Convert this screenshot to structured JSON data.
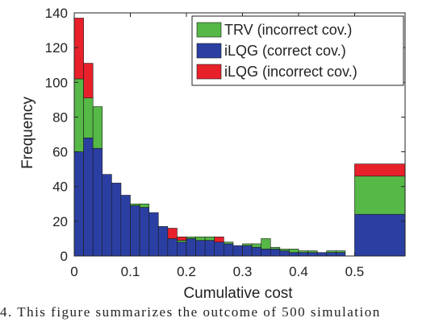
{
  "chart_data": {
    "type": "bar",
    "stacked": true,
    "xlabel": "Cumulative cost",
    "ylabel": "Frequency",
    "xlim": [
      0,
      0.59
    ],
    "ylim": [
      0,
      140
    ],
    "xticks": [
      "0",
      "0.1",
      "0.2",
      "0.3",
      "0.4",
      "0.5"
    ],
    "xtick_values": [
      0,
      0.1,
      0.2,
      0.3,
      0.4,
      0.5
    ],
    "yticks": [
      0,
      20,
      40,
      60,
      80,
      100,
      120,
      140
    ],
    "grid": false,
    "legend_position": "top-right",
    "bin_width": 0.0167,
    "bins": [
      0,
      0.0167,
      0.0333,
      0.05,
      0.0667,
      0.0833,
      0.1,
      0.1167,
      0.1333,
      0.15,
      0.1667,
      0.1833,
      0.2,
      0.2167,
      0.2333,
      0.25,
      0.2667,
      0.2833,
      0.3,
      0.3167,
      0.3333,
      0.35,
      0.3667,
      0.3833,
      0.4,
      0.4167,
      0.4333,
      0.45,
      0.4667
    ],
    "overflow_bin": [
      0.5,
      0.59
    ],
    "series": [
      {
        "name": "iLQG (correct cov.)",
        "color": "#2b3fa3",
        "values": [
          60,
          68,
          62,
          47,
          42,
          35,
          29,
          28,
          25,
          17,
          10,
          8,
          10,
          9,
          9,
          8,
          7,
          6,
          6,
          5,
          4,
          4,
          3,
          2,
          2,
          2,
          2,
          2,
          2
        ],
        "overflow": 24
      },
      {
        "name": "TRV (incorrect cov.)",
        "color": "#56b847",
        "values": [
          42,
          23,
          24,
          0,
          0,
          0,
          1,
          2,
          0,
          0,
          0,
          1,
          1,
          2,
          2,
          0,
          1,
          0,
          1,
          2,
          6,
          1,
          1,
          2,
          1,
          1,
          0,
          1,
          1
        ],
        "overflow": 22
      },
      {
        "name": "iLQG (incorrect cov.)",
        "color": "#e8202a",
        "values": [
          35,
          20,
          0,
          0,
          0,
          0,
          0,
          0,
          0,
          0,
          6,
          2,
          0,
          0,
          0,
          3,
          0,
          0,
          0,
          0,
          0,
          0,
          0,
          0,
          0,
          0,
          0,
          0,
          0
        ],
        "overflow": 7
      }
    ]
  },
  "caption": "4.    This figure summarizes the outcome of 500 simulation"
}
